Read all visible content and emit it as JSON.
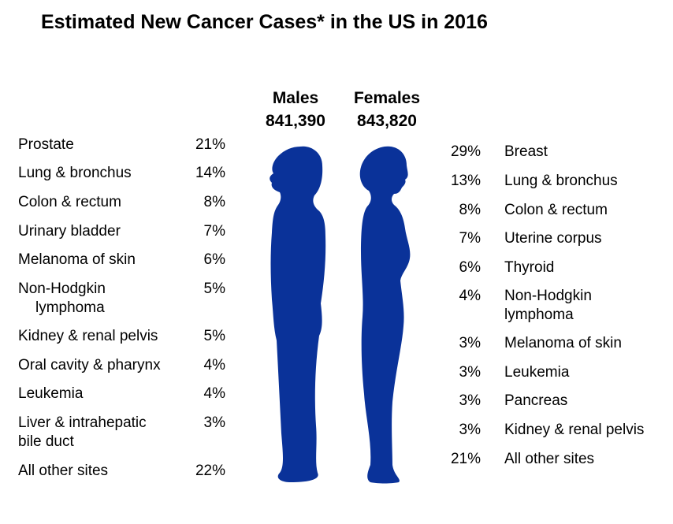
{
  "title": "Estimated New Cancer Cases* in the US in 2016",
  "figure_color": "#0a3299",
  "chart_data": {
    "type": "table",
    "title": "Estimated New Cancer Cases* in the US in 2016",
    "males": {
      "label": "Males",
      "total": "841,390",
      "sites": [
        {
          "site": "Prostate",
          "pct": "21%"
        },
        {
          "site": "Lung & bronchus",
          "pct": "14%"
        },
        {
          "site": "Colon & rectum",
          "pct": "8%"
        },
        {
          "site": "Urinary bladder",
          "pct": "7%"
        },
        {
          "site": "Melanoma of skin",
          "pct": "6%"
        },
        {
          "site": "Non-Hodgkin",
          "site_line2": "lymphoma",
          "pct": "5%"
        },
        {
          "site": "Kidney & renal pelvis",
          "pct": "5%"
        },
        {
          "site": "Oral cavity & pharynx",
          "pct": "4%"
        },
        {
          "site": "Leukemia",
          "pct": "4%"
        },
        {
          "site": "Liver & intrahepatic",
          "site_line2": "bile duct",
          "pct": "3%"
        },
        {
          "site": "All other sites",
          "pct": "22%"
        }
      ]
    },
    "females": {
      "label": "Females",
      "total": "843,820",
      "sites": [
        {
          "site": "Breast",
          "pct": "29%"
        },
        {
          "site": "Lung & bronchus",
          "pct": "13%"
        },
        {
          "site": "Colon & rectum",
          "pct": "8%"
        },
        {
          "site": "Uterine corpus",
          "pct": "7%"
        },
        {
          "site": "Thyroid",
          "pct": "6%"
        },
        {
          "site": "Non-Hodgkin",
          "site_line2": "lymphoma",
          "pct": "4%"
        },
        {
          "site": "Melanoma of skin",
          "pct": "3%"
        },
        {
          "site": "Leukemia",
          "pct": "3%"
        },
        {
          "site": "Pancreas",
          "pct": "3%"
        },
        {
          "site": "Kidney & renal pelvis",
          "pct": "3%"
        },
        {
          "site": "All other sites",
          "pct": "21%"
        }
      ]
    }
  }
}
